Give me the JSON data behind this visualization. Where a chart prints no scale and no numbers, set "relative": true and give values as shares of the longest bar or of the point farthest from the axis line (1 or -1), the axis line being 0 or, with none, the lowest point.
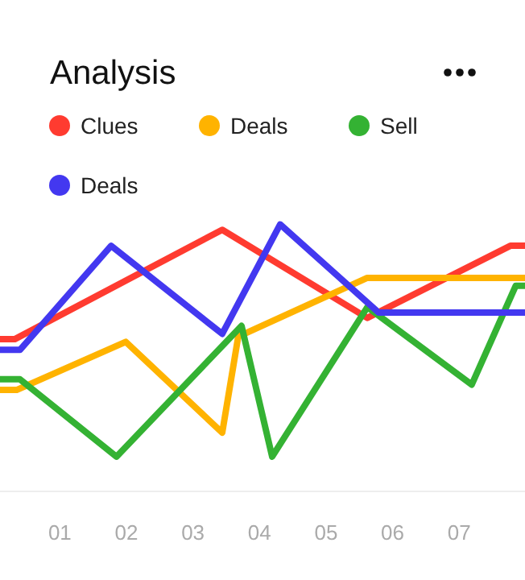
{
  "chart_data": {
    "type": "line",
    "title": "Analysis",
    "relative": true,
    "legend": "top left",
    "marker": "none",
    "line_style": "solid",
    "grid": false,
    "tick_labels": "x",
    "xlim": [
      0.1,
      7.99
    ],
    "xticks": [
      {
        "value": 1,
        "label": "01"
      },
      {
        "value": 2,
        "label": "02"
      },
      {
        "value": 3,
        "label": "03"
      },
      {
        "value": 4,
        "label": "04"
      },
      {
        "value": 5,
        "label": "05"
      },
      {
        "value": 6,
        "label": "06"
      },
      {
        "value": 7,
        "label": "07"
      }
    ],
    "series": [
      {
        "name": "Clues",
        "color": "#ff3b30",
        "x": [
          0.1,
          0.32,
          3.44,
          5.62,
          7.77,
          7.99
        ],
        "values": [
          0.57,
          0.57,
          0.98,
          0.65,
          0.92,
          0.92
        ]
      },
      {
        "name": "Deals",
        "color": "#ffb300",
        "x": [
          0.1,
          0.35,
          1.99,
          3.44,
          3.68,
          5.62,
          7.99
        ],
        "values": [
          0.38,
          0.38,
          0.56,
          0.22,
          0.58,
          0.8,
          0.8
        ]
      },
      {
        "name": "Sell",
        "color": "#34b233",
        "x": [
          0.1,
          0.4,
          1.85,
          3.73,
          4.19,
          5.62,
          7.19,
          7.85,
          7.99
        ],
        "values": [
          0.42,
          0.42,
          0.13,
          0.62,
          0.13,
          0.69,
          0.4,
          0.77,
          0.77
        ]
      },
      {
        "name": "Deals",
        "color": "#4338f0",
        "x": [
          0.1,
          0.4,
          1.77,
          3.44,
          4.31,
          5.79,
          7.99
        ],
        "values": [
          0.53,
          0.53,
          0.92,
          0.59,
          1,
          0.67,
          0.67
        ]
      }
    ]
  }
}
